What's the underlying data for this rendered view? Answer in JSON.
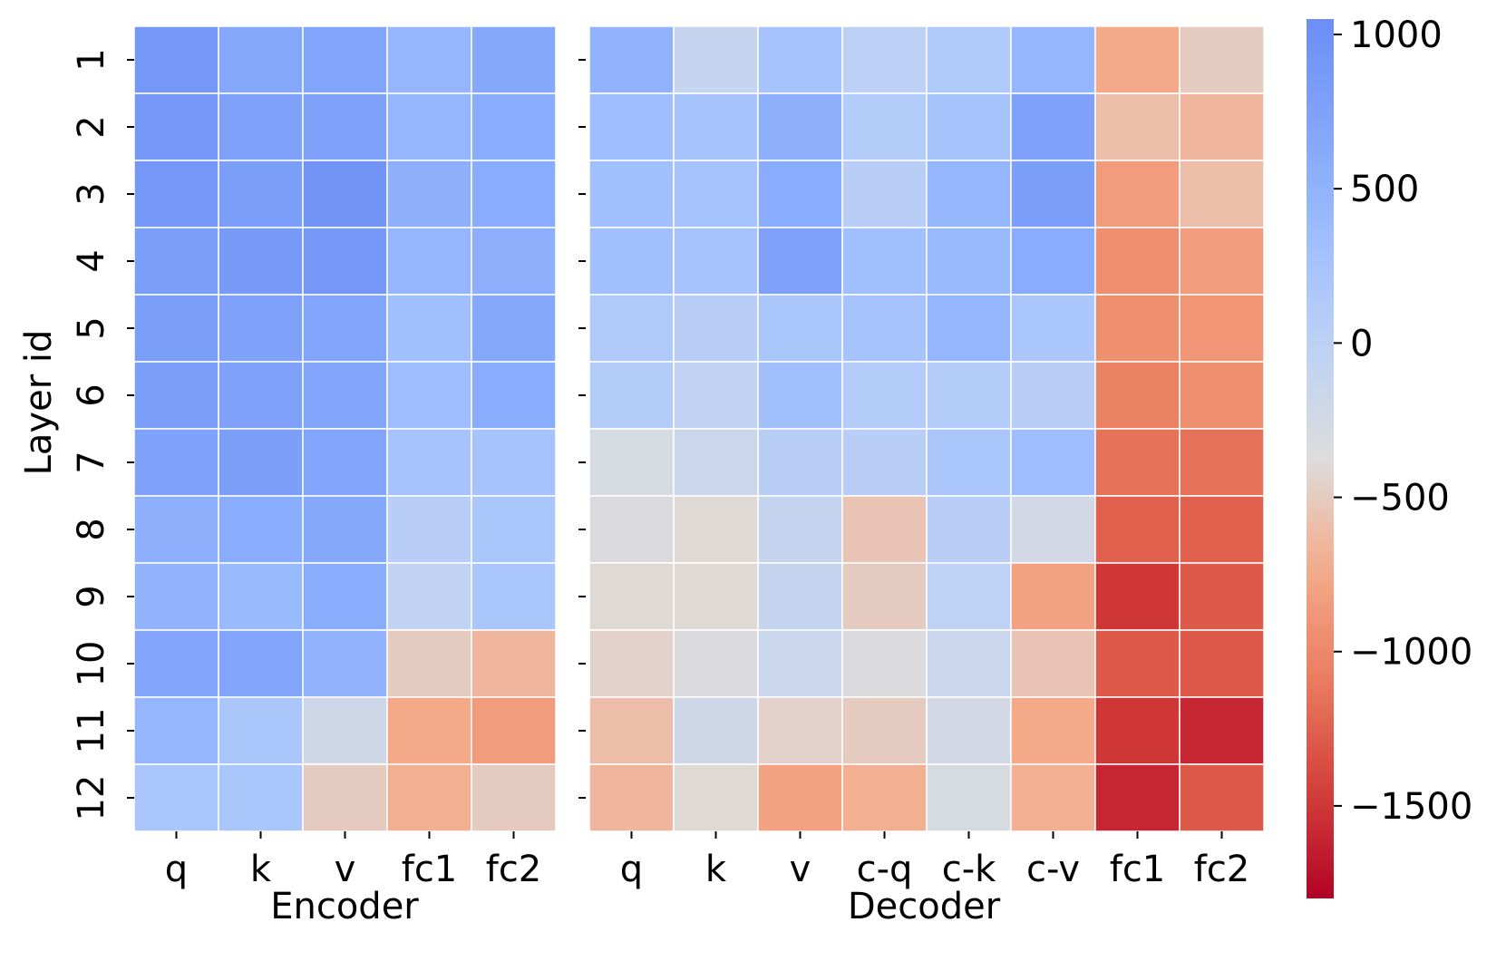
{
  "chart_data": {
    "type": "heatmap",
    "ylabel": "Layer id",
    "row_labels": [
      "1",
      "2",
      "3",
      "4",
      "5",
      "6",
      "7",
      "8",
      "9",
      "10",
      "11",
      "12"
    ],
    "colormap": "coolwarm",
    "value_range": [
      -1800,
      1050
    ],
    "panels": [
      {
        "name": "Encoder",
        "xlabel": "Encoder",
        "columns": [
          "q",
          "k",
          "v",
          "fc1",
          "fc2"
        ],
        "values": [
          [
            900,
            650,
            700,
            450,
            650
          ],
          [
            900,
            750,
            750,
            450,
            600
          ],
          [
            900,
            800,
            950,
            550,
            600
          ],
          [
            800,
            850,
            900,
            450,
            550
          ],
          [
            800,
            750,
            700,
            300,
            650
          ],
          [
            800,
            750,
            700,
            350,
            600
          ],
          [
            750,
            800,
            700,
            250,
            250
          ],
          [
            550,
            600,
            650,
            50,
            200
          ],
          [
            500,
            400,
            600,
            -50,
            200
          ],
          [
            700,
            700,
            500,
            -500,
            -650
          ],
          [
            450,
            200,
            -200,
            -750,
            -850
          ],
          [
            200,
            200,
            -500,
            -700,
            -500
          ]
        ]
      },
      {
        "name": "Decoder",
        "xlabel": "Decoder",
        "columns": [
          "q",
          "k",
          "v",
          "c-q",
          "c-k",
          "c-v",
          "fc1",
          "fc2"
        ],
        "values": [
          [
            500,
            -100,
            250,
            0,
            150,
            450,
            -750,
            -500
          ],
          [
            350,
            250,
            550,
            100,
            250,
            750,
            -600,
            -650
          ],
          [
            300,
            250,
            600,
            50,
            450,
            800,
            -850,
            -600
          ],
          [
            300,
            250,
            750,
            300,
            400,
            600,
            -950,
            -850
          ],
          [
            150,
            50,
            200,
            250,
            450,
            200,
            -950,
            -900
          ],
          [
            100,
            -50,
            300,
            100,
            100,
            50,
            -1050,
            -950
          ],
          [
            -300,
            -150,
            50,
            50,
            200,
            350,
            -1150,
            -1150
          ],
          [
            -350,
            -400,
            -100,
            -550,
            50,
            -250,
            -1250,
            -1250
          ],
          [
            -400,
            -400,
            -100,
            -500,
            -20,
            -800,
            -1500,
            -1300
          ],
          [
            -450,
            -350,
            -150,
            -350,
            -150,
            -550,
            -1300,
            -1300
          ],
          [
            -600,
            -200,
            -450,
            -500,
            -250,
            -750,
            -1500,
            -1600
          ],
          [
            -650,
            -400,
            -800,
            -700,
            -300,
            -700,
            -1600,
            -1300
          ]
        ]
      }
    ],
    "colorbar": {
      "ticks": [
        1000,
        500,
        0,
        -500,
        -1000,
        -1500
      ],
      "tick_labels": [
        "1000",
        "500",
        "0",
        "−500",
        "−1000",
        "−1500"
      ]
    }
  }
}
